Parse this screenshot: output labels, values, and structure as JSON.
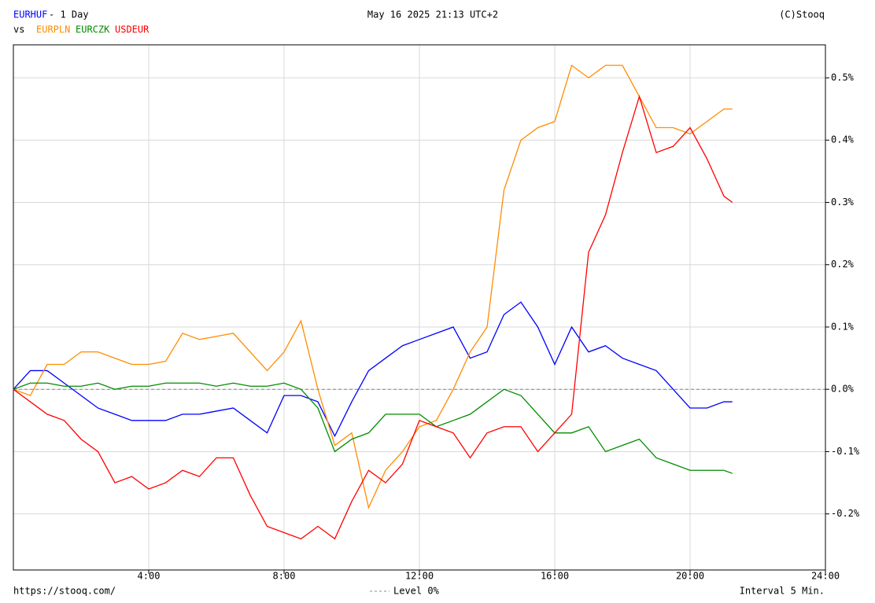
{
  "chart_data": {
    "type": "line",
    "period": "- 1 Day",
    "vs": "vs",
    "date": "May 16 2025 21:13 UTC+2",
    "copyright": "(C)Stooq",
    "source": "https://stooq.com/",
    "interval": "Interval 5 Min.",
    "reference_line": {
      "value": 0,
      "label": "Level 0%"
    },
    "x": [
      0,
      0.5,
      1,
      1.5,
      2,
      2.5,
      3,
      3.5,
      4,
      4.5,
      5,
      5.5,
      6,
      6.5,
      7,
      7.5,
      8,
      8.5,
      9,
      9.5,
      10,
      10.5,
      11,
      11.5,
      12,
      12.5,
      13,
      13.5,
      14,
      14.5,
      15,
      15.5,
      16,
      16.5,
      17,
      17.5,
      18,
      18.5,
      19,
      19.5,
      20,
      20.5,
      21,
      21.25
    ],
    "series": [
      {
        "name": "EURHUF",
        "color": "#0000ff",
        "values": [
          0,
          0.03,
          0.03,
          0.01,
          -0.01,
          -0.03,
          -0.04,
          -0.05,
          -0.05,
          -0.05,
          -0.04,
          -0.04,
          -0.035,
          -0.03,
          -0.05,
          -0.07,
          -0.01,
          -0.01,
          -0.02,
          -0.075,
          -0.02,
          0.03,
          0.05,
          0.07,
          0.08,
          0.09,
          0.1,
          0.05,
          0.06,
          0.12,
          0.14,
          0.1,
          0.04,
          0.1,
          0.06,
          0.07,
          0.05,
          0.04,
          0.03,
          0,
          -0.03,
          -0.03,
          -0.02,
          -0.02
        ]
      },
      {
        "name": "EURPLN",
        "color": "#ff8c00",
        "values": [
          0,
          -0.01,
          0.04,
          0.04,
          0.06,
          0.06,
          0.05,
          0.04,
          0.04,
          0.045,
          0.09,
          0.08,
          0.085,
          0.09,
          0.06,
          0.03,
          0.06,
          0.11,
          0,
          -0.09,
          -0.07,
          -0.19,
          -0.13,
          -0.1,
          -0.06,
          -0.05,
          0,
          0.06,
          0.1,
          0.32,
          0.4,
          0.42,
          0.43,
          0.52,
          0.5,
          0.52,
          0.52,
          0.47,
          0.42,
          0.42,
          0.41,
          0.43,
          0.45,
          0.45
        ]
      },
      {
        "name": "EURCZK",
        "color": "#008c00",
        "values": [
          0,
          0.01,
          0.01,
          0.005,
          0.005,
          0.01,
          0,
          0.005,
          0.005,
          0.01,
          0.01,
          0.01,
          0.005,
          0.01,
          0.005,
          0.005,
          0.01,
          0,
          -0.03,
          -0.1,
          -0.08,
          -0.07,
          -0.04,
          -0.04,
          -0.04,
          -0.06,
          -0.05,
          -0.04,
          -0.02,
          0,
          -0.01,
          -0.04,
          -0.07,
          -0.07,
          -0.06,
          -0.1,
          -0.09,
          -0.08,
          -0.11,
          -0.12,
          -0.13,
          -0.13,
          -0.13,
          -0.135
        ]
      },
      {
        "name": "USDEUR",
        "color": "#ff0000",
        "values": [
          0,
          -0.02,
          -0.04,
          -0.05,
          -0.08,
          -0.1,
          -0.15,
          -0.14,
          -0.16,
          -0.15,
          -0.13,
          -0.14,
          -0.11,
          -0.11,
          -0.17,
          -0.22,
          -0.23,
          -0.24,
          -0.22,
          -0.24,
          -0.18,
          -0.13,
          -0.15,
          -0.12,
          -0.05,
          -0.06,
          -0.07,
          -0.11,
          -0.07,
          -0.06,
          -0.06,
          -0.1,
          -0.07,
          -0.04,
          0.22,
          0.28,
          0.38,
          0.47,
          0.38,
          0.39,
          0.42,
          0.37,
          0.31,
          0.3
        ]
      }
    ],
    "xlim": [
      0,
      24
    ],
    "xticks": [
      {
        "value": 4,
        "label": "4:00"
      },
      {
        "value": 8,
        "label": "8:00"
      },
      {
        "value": 12,
        "label": "12:00"
      },
      {
        "value": 16,
        "label": "16:00"
      },
      {
        "value": 20,
        "label": "20:00"
      },
      {
        "value": 24,
        "label": "24:00"
      }
    ],
    "ylim": [
      -0.29,
      0.553
    ],
    "yticks": [
      {
        "value": -0.2,
        "label": "-0.2%"
      },
      {
        "value": -0.1,
        "label": "-0.1%"
      },
      {
        "value": 0,
        "label": "0.0%"
      },
      {
        "value": 0.1,
        "label": "0.1%"
      },
      {
        "value": 0.2,
        "label": "0.2%"
      },
      {
        "value": 0.3,
        "label": "0.3%"
      },
      {
        "value": 0.4,
        "label": "0.4%"
      },
      {
        "value": 0.5,
        "label": "0.5%"
      }
    ],
    "grid": true
  }
}
